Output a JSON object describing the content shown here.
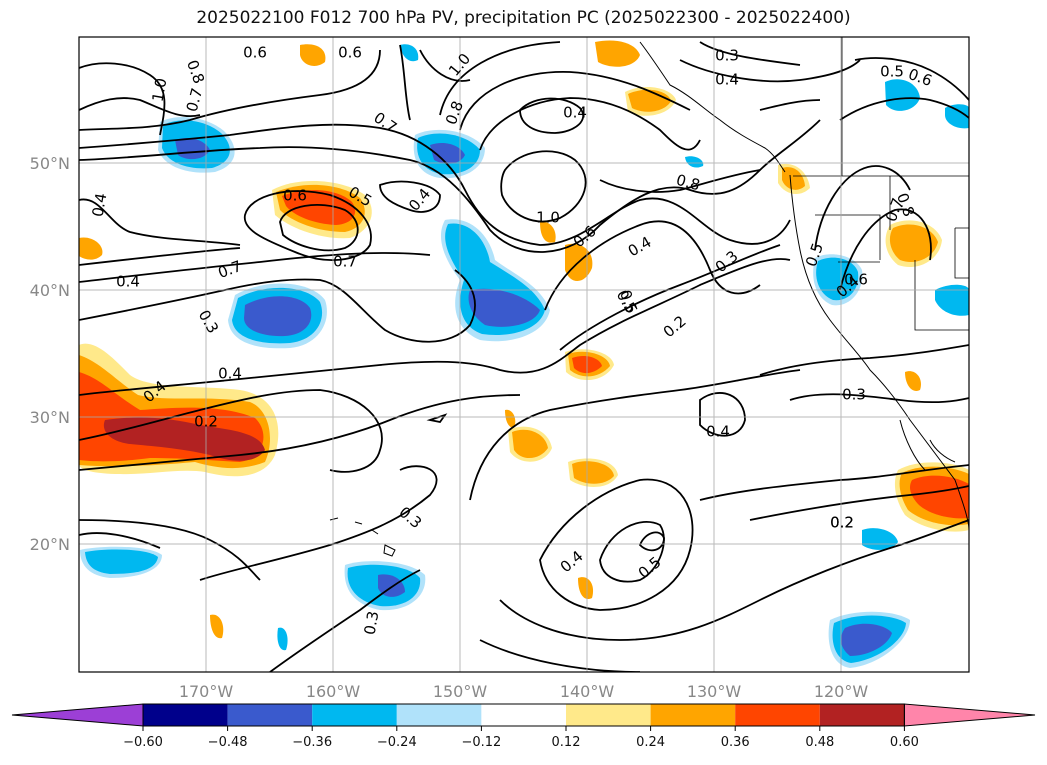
{
  "title": "2025022100 F012 700 hPa PV, precipitation PC (2025022300 - 2025022400)",
  "map": {
    "lat_labels": [
      "50°N",
      "40°N",
      "30°N",
      "20°N"
    ],
    "lon_labels": [
      "170°W",
      "160°W",
      "150°W",
      "140°W",
      "130°W",
      "120°W"
    ]
  },
  "contour_labels": [
    "0.6",
    "0.6",
    "1.0",
    "0.3",
    "0.4",
    "0.7",
    "0.6",
    "0.5",
    "1.0",
    "0.8",
    "0.7",
    "0.8",
    "0.4",
    "0.4",
    "0.7",
    "0.6",
    "0.5",
    "0.4",
    "0.8",
    "0.8",
    "0.7",
    "0.4",
    "1.0",
    "0.6",
    "0.4",
    "0.5",
    "0.7",
    "0.5",
    "0.3",
    "0.6",
    "0.5",
    "0.4",
    "0.3",
    "0.2",
    "0.4",
    "0.3",
    "0.4",
    "0.2",
    "0.4",
    "0.3",
    "0.2",
    "0.3",
    "0.4",
    "0.5",
    "0.2"
  ],
  "colorbar": {
    "ticks": [
      "−0.60",
      "−0.48",
      "−0.36",
      "−0.24",
      "−0.12",
      "0.12",
      "0.24",
      "0.36",
      "0.48",
      "0.60"
    ],
    "colors": [
      "#9c3fd6",
      "#00008b",
      "#3a5acd",
      "#00b8f0",
      "#b0e2fa",
      "#ffffff",
      "#ffe98a",
      "#ffa500",
      "#ff4500",
      "#b22222",
      "#ff85aa"
    ]
  }
}
